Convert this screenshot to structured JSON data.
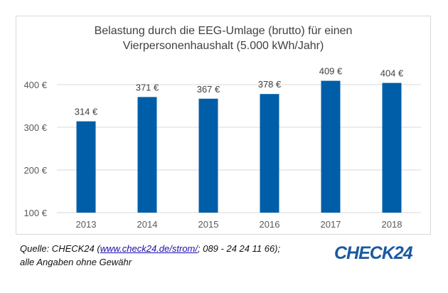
{
  "chart_data": {
    "type": "bar",
    "title_lines": [
      "Belastung durch die EEG-Umlage (brutto) für einen",
      "Vierpersonenhaushalt (5.000 kWh/Jahr)"
    ],
    "categories": [
      "2013",
      "2014",
      "2015",
      "2016",
      "2017",
      "2018"
    ],
    "values": [
      314,
      371,
      367,
      378,
      409,
      404
    ],
    "data_labels": [
      "314 €",
      "371 €",
      "367 €",
      "378 €",
      "409 €",
      "404 €"
    ],
    "yticks": [
      100,
      200,
      300,
      400
    ],
    "ytick_labels": [
      "100 €",
      "200 €",
      "300 €",
      "400 €"
    ],
    "ylim": [
      100,
      400
    ],
    "grid": true,
    "bar_color": "#005ea8",
    "xlabel": "",
    "ylabel": ""
  },
  "footer": {
    "source_prefix": "Quelle: CHECK24 (",
    "source_link": "www.check24.de/strom/",
    "source_suffix": "; 089 - 24 24 11 66);",
    "disclaimer": "alle Angaben ohne Gewähr",
    "logo": "CHECK24"
  }
}
